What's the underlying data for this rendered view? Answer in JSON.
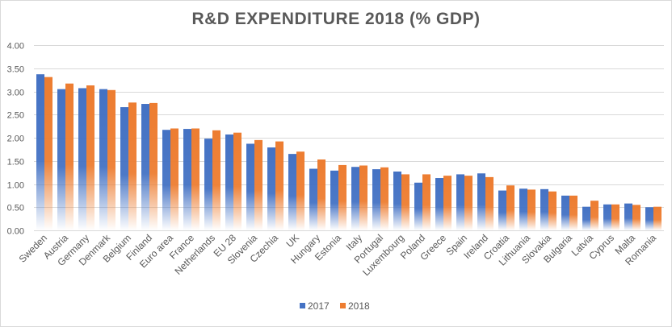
{
  "chart_data": {
    "type": "bar",
    "title": "R&D EXPENDITURE 2018 (% GDP)",
    "xlabel": "",
    "ylabel": "",
    "ylim": [
      0,
      4
    ],
    "yticks": [
      "0.00",
      "0.50",
      "1.00",
      "1.50",
      "2.00",
      "2.50",
      "3.00",
      "3.50",
      "4.00"
    ],
    "grid": true,
    "legend_position": "bottom",
    "categories": [
      "Sweden",
      "Austria",
      "Germany",
      "Denmark",
      "Belgium",
      "Finland",
      "Euro area",
      "France",
      "Netherlands",
      "EU 28",
      "Slovenia",
      "Czechia",
      "UK",
      "Hungary",
      "Estonia",
      "Italy",
      "Portugal",
      "Luxembourg",
      "Poland",
      "Greece",
      "Spain",
      "Ireland",
      "Croatia",
      "Lithuania",
      "Slovakia",
      "Bulgaria",
      "Latvia",
      "Cyprus",
      "Malta",
      "Romania"
    ],
    "series": [
      {
        "name": "2017",
        "color": "#4472c4",
        "values": [
          3.37,
          3.05,
          3.07,
          3.05,
          2.66,
          2.73,
          2.17,
          2.19,
          1.98,
          2.07,
          1.87,
          1.79,
          1.65,
          1.33,
          1.29,
          1.37,
          1.32,
          1.27,
          1.03,
          1.13,
          1.21,
          1.23,
          0.86,
          0.9,
          0.89,
          0.75,
          0.51,
          0.56,
          0.58,
          0.5
        ]
      },
      {
        "name": "2018",
        "color": "#ed7d31",
        "values": [
          3.31,
          3.17,
          3.13,
          3.03,
          2.76,
          2.75,
          2.2,
          2.2,
          2.16,
          2.11,
          1.95,
          1.92,
          1.7,
          1.53,
          1.41,
          1.4,
          1.36,
          1.21,
          1.21,
          1.18,
          1.18,
          1.15,
          0.97,
          0.88,
          0.84,
          0.75,
          0.64,
          0.56,
          0.55,
          0.51
        ]
      }
    ]
  }
}
